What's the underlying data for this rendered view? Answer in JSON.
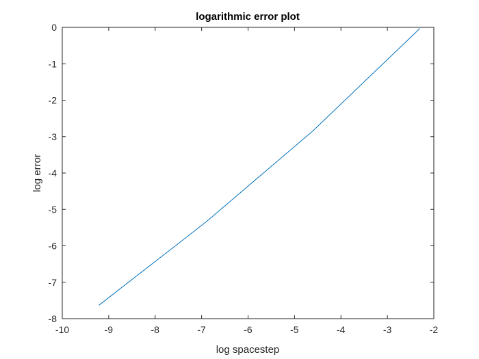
{
  "chart_data": {
    "type": "line",
    "title": "logarithmic error plot",
    "xlabel": "log spacestep",
    "ylabel": "log error",
    "xlim": [
      -10,
      -2
    ],
    "ylim": [
      -8,
      0
    ],
    "xticks": [
      -10,
      -9,
      -8,
      -7,
      -6,
      -5,
      -4,
      -3,
      -2
    ],
    "yticks": [
      0,
      -1,
      -2,
      -3,
      -4,
      -5,
      -6,
      -7,
      -8
    ],
    "grid": false,
    "series": [
      {
        "x": [
          -9.21,
          -6.91,
          -4.61,
          -2.3
        ],
        "y": [
          -7.63,
          -5.35,
          -2.85,
          -0.03
        ]
      }
    ],
    "colors": {
      "line": "#0072BD",
      "axis": "#262626",
      "background": "#ffffff"
    }
  }
}
